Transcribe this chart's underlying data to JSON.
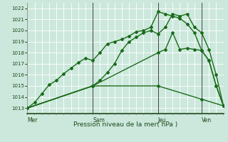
{
  "xlabel": "Pression niveau de la mer( hPa )",
  "bg_color": "#cce8dc",
  "plot_bg_color": "#cce8dc",
  "grid_color": "#ffffff",
  "line_color": "#1a6b1a",
  "ylim": [
    1012.5,
    1022.5
  ],
  "yticks": [
    1013,
    1014,
    1015,
    1016,
    1017,
    1018,
    1019,
    1020,
    1021,
    1022
  ],
  "day_labels": [
    "Mer",
    "Sam",
    "Jeu",
    "Ven"
  ],
  "xlim": [
    0,
    27
  ],
  "series": [
    {
      "x": [
        0,
        1,
        2,
        3,
        4,
        5,
        6,
        7,
        8,
        9,
        10,
        11,
        12,
        13,
        14,
        15,
        16,
        17,
        18,
        19,
        20,
        21,
        22,
        23,
        24,
        25,
        26,
        27
      ],
      "y": [
        1013.0,
        1013.5,
        1014.3,
        1015.1,
        1015.5,
        1016.1,
        1016.6,
        1017.1,
        1017.5,
        1017.3,
        1018.0,
        1018.8,
        1019.0,
        1019.2,
        1019.5,
        1019.9,
        1020.0,
        1020.3,
        1021.7,
        1021.5,
        1021.3,
        1021.1,
        1020.6,
        1019.8,
        1018.2,
        1017.3,
        1015.0,
        1013.2
      ],
      "marker": "D",
      "markersize": 2.0,
      "linewidth": 1.0
    },
    {
      "x": [
        0,
        9,
        10,
        11,
        12,
        13,
        14,
        15,
        16,
        17,
        18,
        19,
        20,
        21,
        22,
        23,
        24,
        25,
        26,
        27
      ],
      "y": [
        1013.0,
        1015.0,
        1015.5,
        1016.2,
        1017.0,
        1018.2,
        1019.0,
        1019.4,
        1019.8,
        1020.0,
        1019.7,
        1020.3,
        1021.5,
        1021.3,
        1021.5,
        1020.3,
        1019.8,
        1018.3,
        1016.0,
        1013.2
      ],
      "marker": "D",
      "markersize": 2.0,
      "linewidth": 1.0
    },
    {
      "x": [
        0,
        9,
        18,
        19,
        20,
        21,
        22,
        23,
        24,
        25,
        26,
        27
      ],
      "y": [
        1013.0,
        1015.0,
        1018.0,
        1018.3,
        1019.8,
        1018.3,
        1018.4,
        1018.3,
        1018.2,
        1017.3,
        1015.0,
        1013.2
      ],
      "marker": "D",
      "markersize": 2.0,
      "linewidth": 1.0
    },
    {
      "x": [
        0,
        9,
        18,
        24,
        27
      ],
      "y": [
        1013.0,
        1015.0,
        1015.0,
        1013.8,
        1013.2
      ],
      "marker": "D",
      "markersize": 2.0,
      "linewidth": 1.0
    }
  ]
}
